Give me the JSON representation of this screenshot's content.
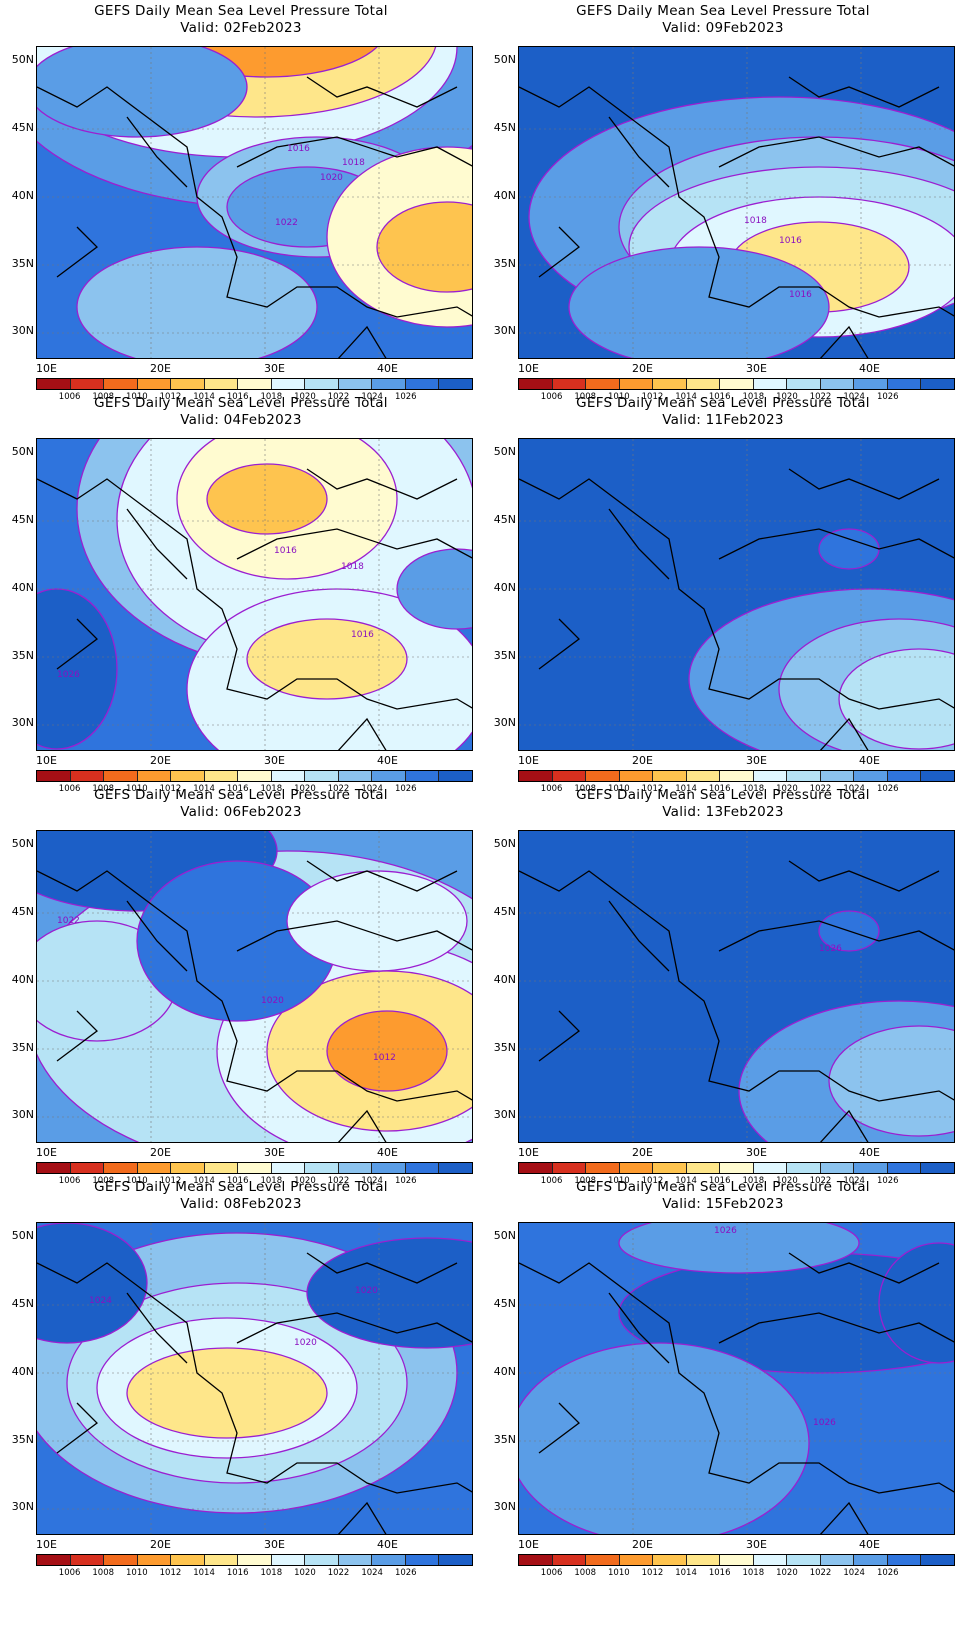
{
  "panels": [
    {
      "title": "GEFS Daily Mean Sea Level Pressure Total",
      "valid": "Valid: 02Feb2023",
      "contour_labels": [
        "1016",
        "1018",
        "1020",
        "1022"
      ]
    },
    {
      "title": "GEFS Daily Mean Sea Level Pressure Total",
      "valid": "Valid: 09Feb2023",
      "contour_labels": [
        "1018",
        "1016",
        "1016"
      ]
    },
    {
      "title": "GEFS Daily Mean Sea Level Pressure Total",
      "valid": "Valid: 04Feb2023",
      "contour_labels": [
        "1016",
        "1018",
        "1016",
        "1026"
      ]
    },
    {
      "title": "GEFS Daily Mean Sea Level Pressure Total",
      "valid": "Valid: 11Feb2023",
      "contour_labels": []
    },
    {
      "title": "GEFS Daily Mean Sea Level Pressure Total",
      "valid": "Valid: 06Feb2023",
      "contour_labels": [
        "1022",
        "1020",
        "1012"
      ]
    },
    {
      "title": "GEFS Daily Mean Sea Level Pressure Total",
      "valid": "Valid: 13Feb2023",
      "contour_labels": [
        "1026"
      ]
    },
    {
      "title": "GEFS Daily Mean Sea Level Pressure Total",
      "valid": "Valid: 08Feb2023",
      "contour_labels": [
        "1020",
        "1024",
        "1020"
      ]
    },
    {
      "title": "GEFS Daily Mean Sea Level Pressure Total",
      "valid": "Valid: 15Feb2023",
      "contour_labels": [
        "1026",
        "1026"
      ]
    }
  ],
  "lat_labels": [
    "50N",
    "45N",
    "40N",
    "35N",
    "30N"
  ],
  "lon_labels": [
    "10E",
    "20E",
    "30E",
    "40E"
  ],
  "colorbar": {
    "labels": [
      "1006",
      "1008",
      "1010",
      "1012",
      "1014",
      "1016",
      "1018",
      "1020",
      "1022",
      "1024",
      "1026"
    ],
    "colors": [
      "#a50f15",
      "#d7301f",
      "#f26b1d",
      "#fd9b2f",
      "#fec44f",
      "#fee68a",
      "#fffbd0",
      "#e0f7ff",
      "#b6e3f5",
      "#8cc3ee",
      "#5a9de6",
      "#2f74dd",
      "#1c5fc7"
    ]
  }
}
